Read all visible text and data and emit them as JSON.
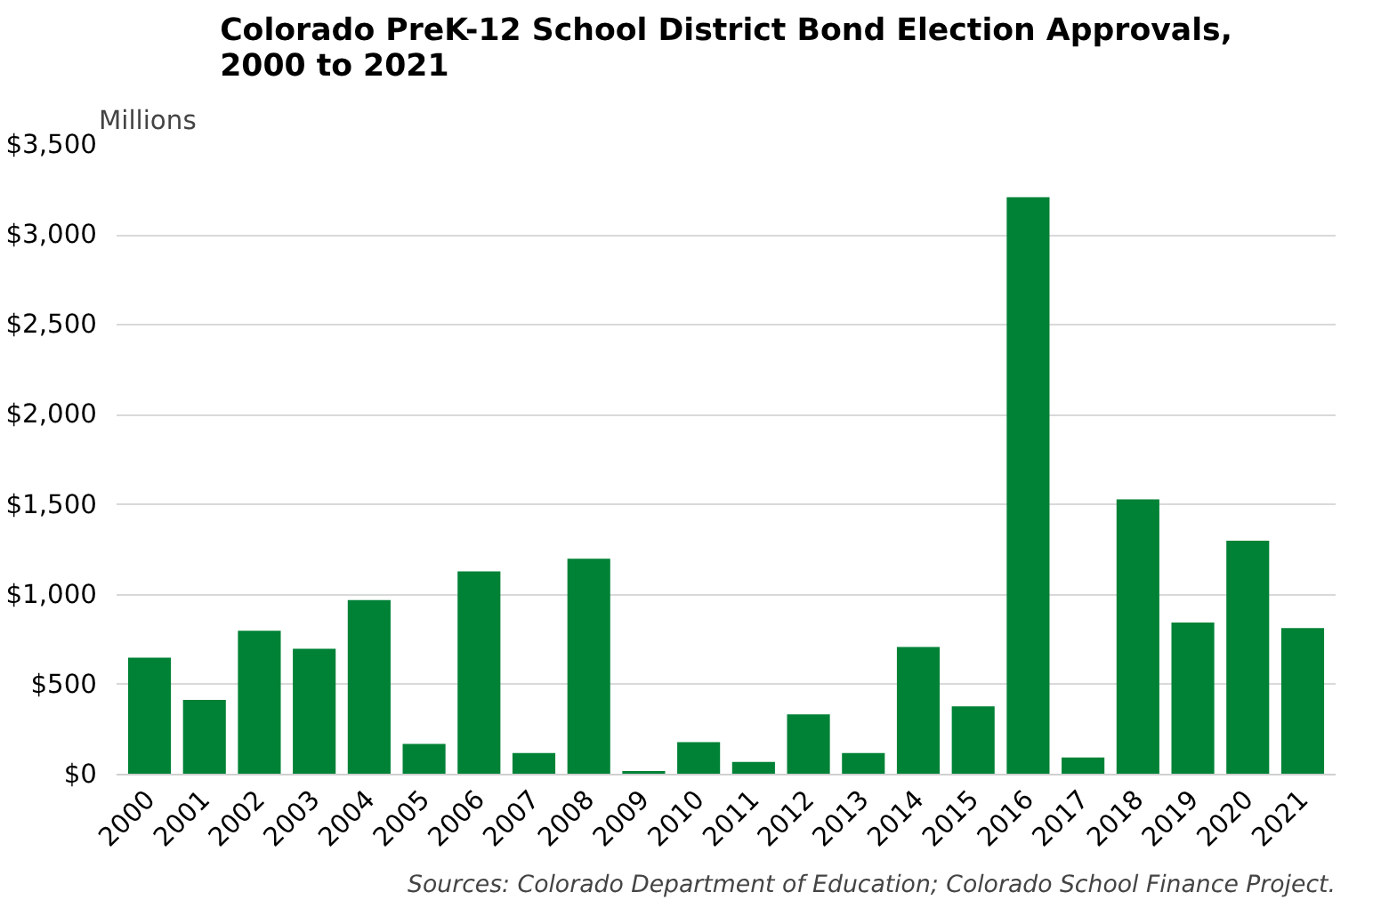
{
  "chart_data": {
    "type": "bar",
    "title": "Colorado PreK-12 School District Bond Election Approvals,\n2000 to 2021",
    "ylabel": "Millions",
    "categories": [
      "2000",
      "2001",
      "2002",
      "2003",
      "2004",
      "2005",
      "2006",
      "2007",
      "2008",
      "2009",
      "2010",
      "2011",
      "2012",
      "2013",
      "2014",
      "2015",
      "2016",
      "2017",
      "2018",
      "2019",
      "2020",
      "2021"
    ],
    "values": [
      650,
      415,
      800,
      700,
      970,
      170,
      1130,
      120,
      1200,
      20,
      180,
      70,
      335,
      120,
      710,
      380,
      3210,
      95,
      1530,
      845,
      1300,
      815
    ],
    "color": "#008236",
    "ylim": [
      0,
      3500
    ],
    "yticks": [
      {
        "value": 0,
        "label": "$0"
      },
      {
        "value": 500,
        "label": "$500"
      },
      {
        "value": 1000,
        "label": "$1,000"
      },
      {
        "value": 1500,
        "label": "$1,500"
      },
      {
        "value": 2000,
        "label": "$2,000"
      },
      {
        "value": 2500,
        "label": "$2,500"
      },
      {
        "value": 3000,
        "label": "$3,000"
      },
      {
        "value": 3500,
        "label": "$3,500"
      }
    ],
    "grid": "y",
    "annotations": [
      "Sources: Colorado Department of Education; Colorado School Finance Project."
    ]
  }
}
